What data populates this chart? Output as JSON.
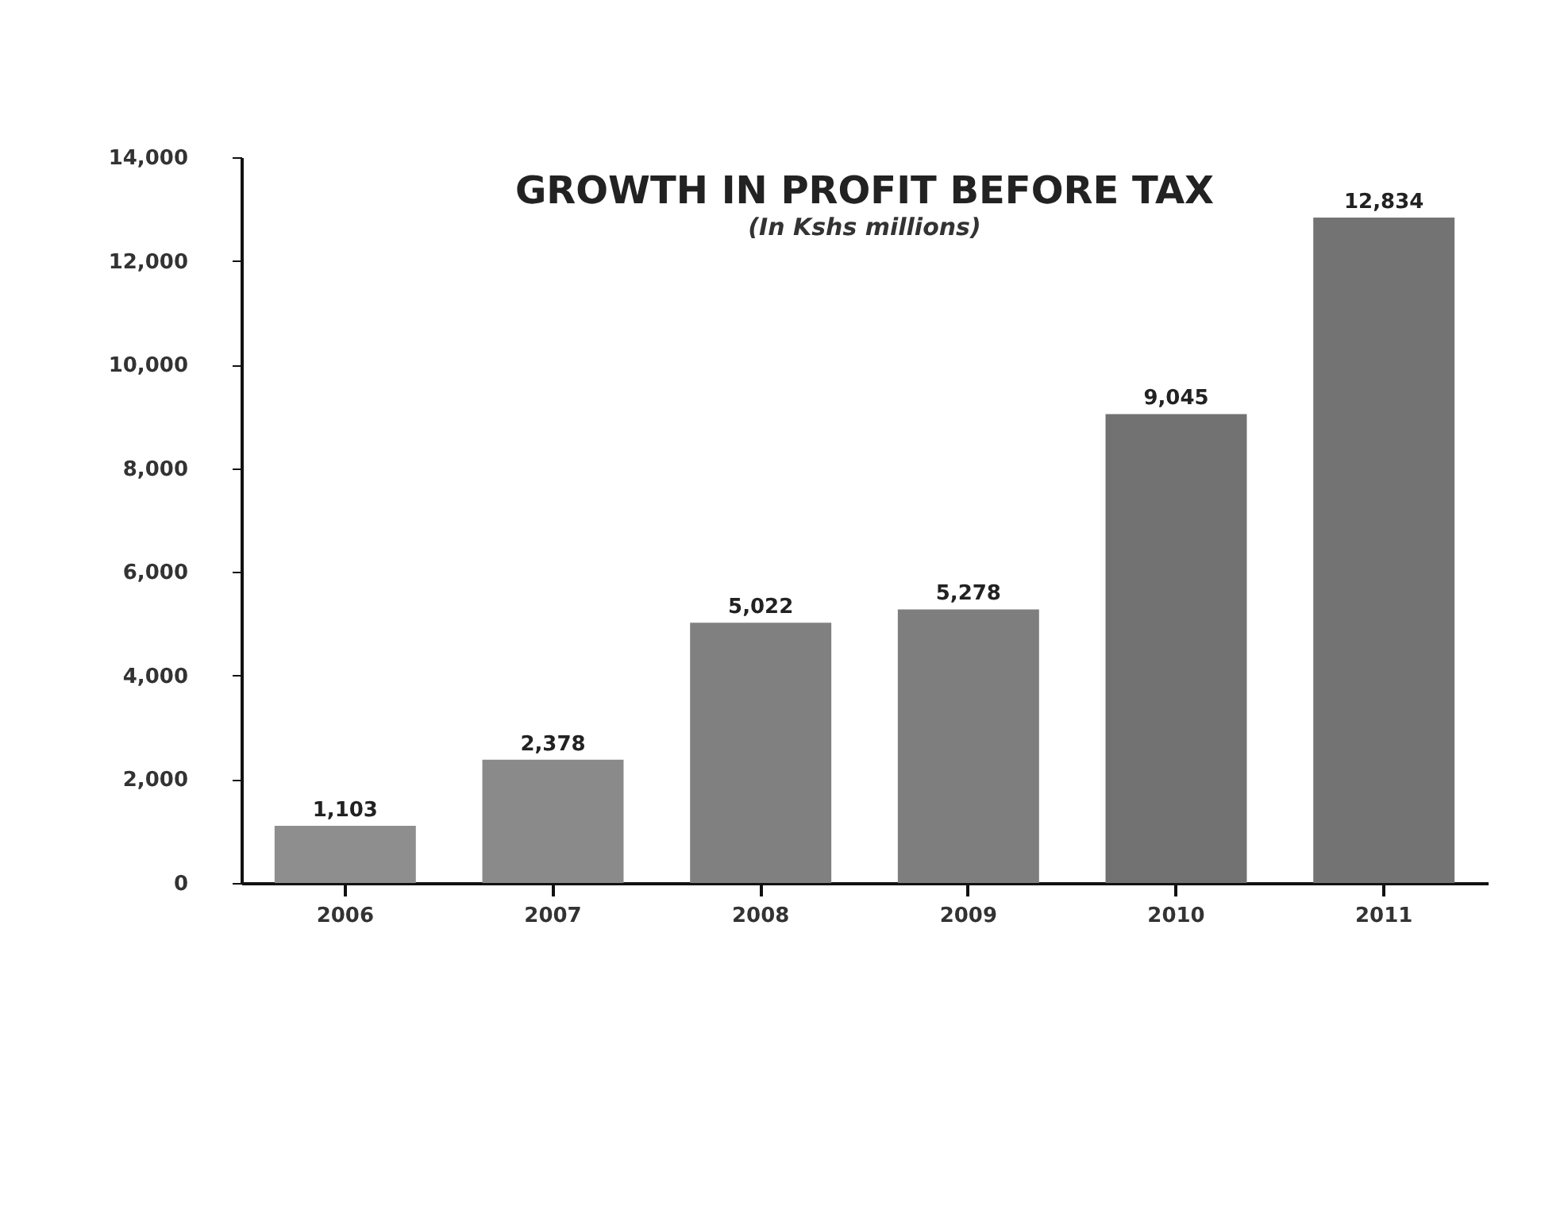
{
  "chart_data": {
    "type": "bar",
    "title": "GROWTH IN PROFIT BEFORE TAX",
    "subtitle": "(In Kshs millions)",
    "categories": [
      "2006",
      "2007",
      "2008",
      "2009",
      "2010",
      "2011"
    ],
    "values": [
      1103,
      2378,
      5022,
      5278,
      9045,
      12834
    ],
    "colors": [
      "#8e8e8e",
      "#8a8a8a",
      "#808080",
      "#7e7e7e",
      "#727272",
      "#737373"
    ],
    "ylim": [
      0,
      14000
    ],
    "yticks": [
      {
        "value": 0,
        "label": "0"
      },
      {
        "value": 2000,
        "label": "2,000"
      },
      {
        "value": 4000,
        "label": "4,000"
      },
      {
        "value": 6000,
        "label": "6,000"
      },
      {
        "value": 8000,
        "label": "8,000"
      },
      {
        "value": 10000,
        "label": "10,000"
      },
      {
        "value": 12000,
        "label": "12,000"
      },
      {
        "value": 14000,
        "label": "14,000"
      }
    ],
    "value_labels": [
      "1,103",
      "2,378",
      "5,022",
      "5,278",
      "9,045",
      "12,834"
    ],
    "grid": false
  }
}
